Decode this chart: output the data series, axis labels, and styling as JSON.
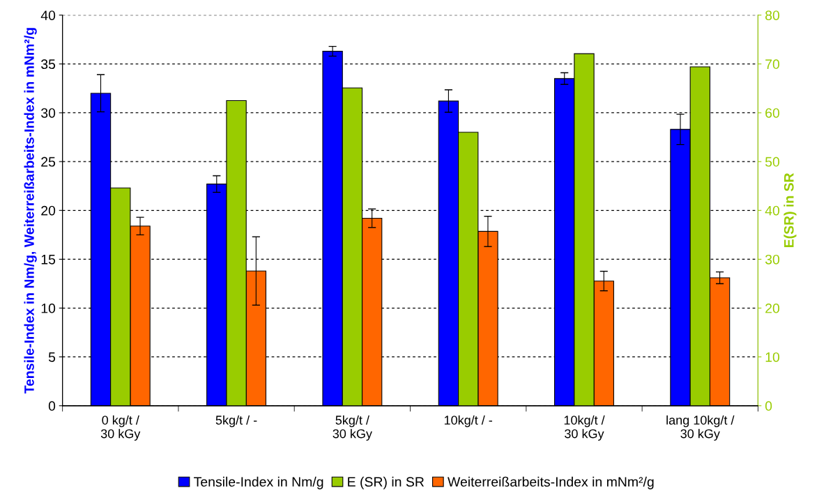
{
  "chart_data": {
    "type": "bar",
    "ylabel": "Tensile-Index in Nm/g, Weiterreißarbeits-Index in mNm²/g",
    "y2label": "E(SR) in SR",
    "categories": [
      "0 kg/t /\n30 kGy",
      "5kg/t / -",
      "5kg/t /\n30 kGy",
      "10kg/t / -",
      "10kg/t /\n30 kGy",
      "lang 10kg/t /\n30 kGy"
    ],
    "series": [
      {
        "name": "Tensile-Index in Nm/g",
        "color": "#0000ff",
        "values": [
          32.0,
          22.7,
          36.3,
          31.2,
          33.5,
          28.3
        ],
        "errors": [
          1.9,
          0.85,
          0.5,
          1.15,
          0.6,
          1.55
        ]
      },
      {
        "name": "E (SR) in SR",
        "color": "#99cc00",
        "axis": "y2",
        "values": [
          44.6,
          62.5,
          65.1,
          56.0,
          72.1,
          69.4
        ]
      },
      {
        "name": "Weiterreißarbeits-Index in mNm²/g",
        "color": "#ff6600",
        "values": [
          18.4,
          13.8,
          19.2,
          17.85,
          12.77,
          13.1
        ],
        "errors": [
          0.9,
          3.5,
          0.95,
          1.55,
          1.0,
          0.6
        ]
      }
    ],
    "ylim": [
      0,
      40
    ],
    "yticks": [
      0,
      5,
      10,
      15,
      20,
      25,
      30,
      35,
      40
    ],
    "y2lim": [
      0,
      80
    ],
    "y2ticks": [
      0,
      10,
      20,
      30,
      40,
      50,
      60,
      70,
      80
    ],
    "grid": "y",
    "legend": "bottom"
  }
}
